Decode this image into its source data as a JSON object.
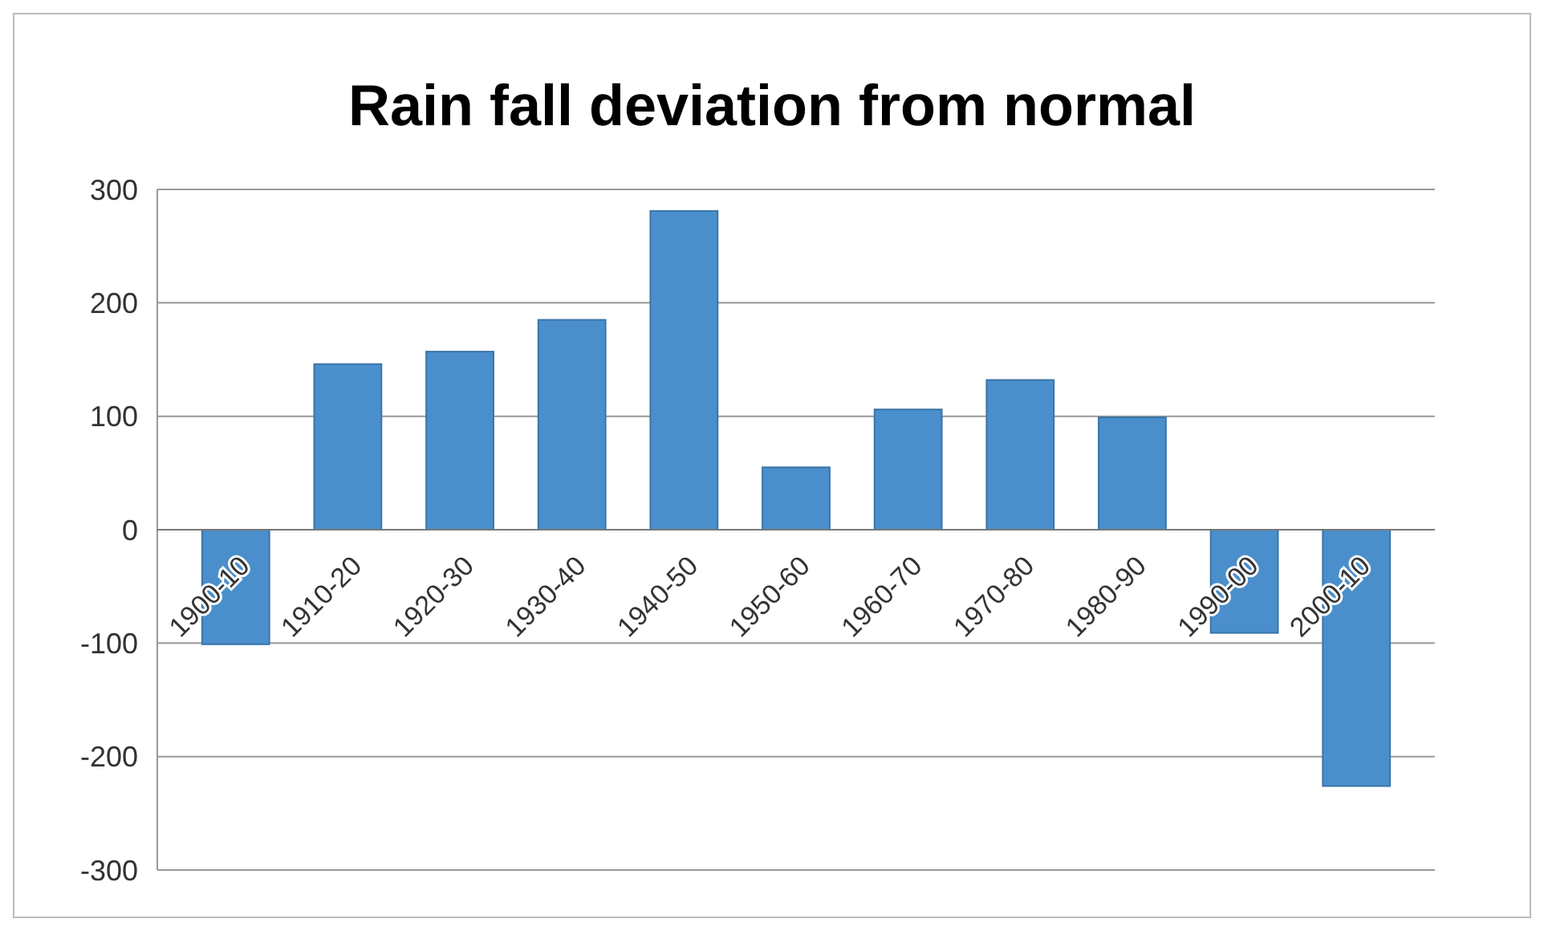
{
  "chart_data": {
    "type": "bar",
    "title": "Rain fall deviation from normal",
    "categories": [
      "1900-10",
      "1910-20",
      "1920-30",
      "1930-40",
      "1940-50",
      "1950-60",
      "1960-70",
      "1970-80",
      "1980-90",
      "1990-00",
      "2000-10"
    ],
    "values": [
      -101,
      146,
      157,
      185,
      281,
      55,
      106,
      132,
      99,
      -91,
      -226
    ],
    "color": "#4a8fcb",
    "ylim": [
      -300,
      300
    ],
    "yticks": [
      -300,
      -200,
      -100,
      0,
      100,
      200,
      300
    ],
    "grid": "y"
  }
}
